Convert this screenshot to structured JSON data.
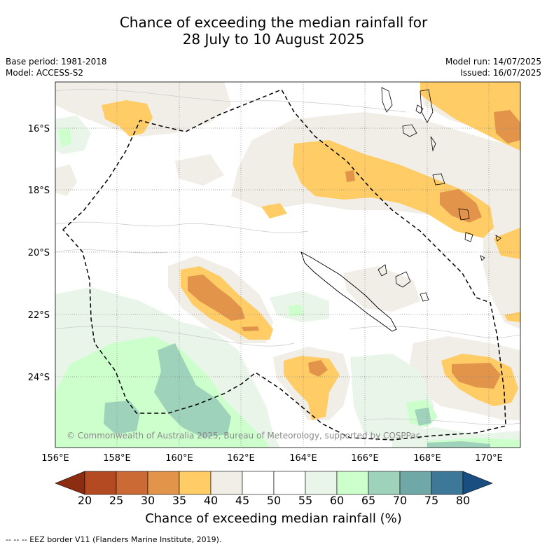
{
  "title": {
    "line1": "Chance of exceeding the median rainfall for",
    "line2": "28 July to 10 August 2025"
  },
  "meta": {
    "base_period": "Base period: 1981-2018",
    "model": "Model: ACCESS-S2",
    "model_run": "Model run: 14/07/2025",
    "issued": "Issued: 16/07/2025"
  },
  "map": {
    "copyright": "© Commonwealth of Australia 2025, Bureau of Meteorology, supported by COSPPac",
    "lat_labels": [
      "16°S",
      "18°S",
      "20°S",
      "22°S",
      "24°S"
    ],
    "lon_labels": [
      "156°E",
      "158°E",
      "160°E",
      "162°E",
      "164°E",
      "166°E",
      "168°E",
      "170°E"
    ]
  },
  "colorbar": {
    "ticks": [
      "20",
      "25",
      "30",
      "35",
      "40",
      "45",
      "50",
      "55",
      "60",
      "65",
      "70",
      "75",
      "80"
    ],
    "colors": [
      "#8c2d12",
      "#b34a22",
      "#cc6a35",
      "#e2944a",
      "#ffcc66",
      "#f1ede7",
      "#ffffff",
      "#ffffff",
      "#e8f5e8",
      "#ccffcc",
      "#9ed2bb",
      "#70a8a8",
      "#3e7898",
      "#1a4e80"
    ],
    "title": "Chance of exceeding median rainfall (%)"
  },
  "footer": "--  --  -- EEZ border V11 (Flanders Marine Institute, 2019)."
}
